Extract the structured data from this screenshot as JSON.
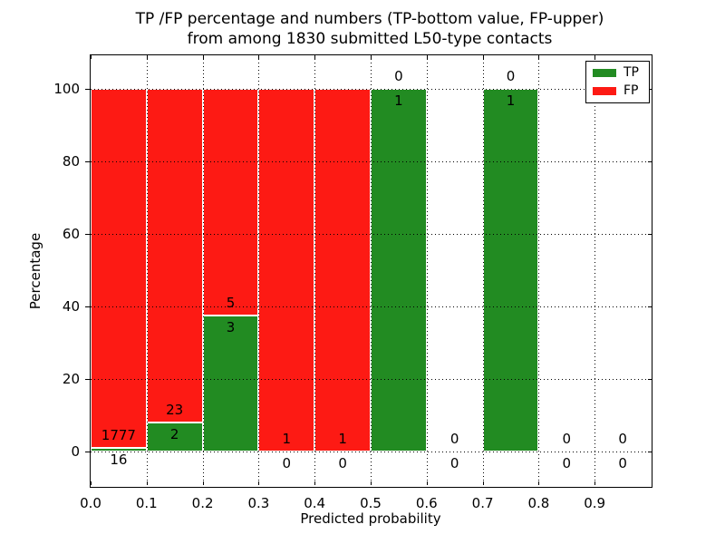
{
  "title": {
    "line1": "TP /FP percentage and numbers (TP-bottom value, FP-upper)",
    "line2": "from among 1830 submitted L50-type contacts"
  },
  "axes": {
    "xlabel": "Predicted probability",
    "ylabel": "Percentage",
    "x_ticks": [
      "0.0",
      "0.1",
      "0.2",
      "0.3",
      "0.4",
      "0.5",
      "0.6",
      "0.7",
      "0.8",
      "0.9"
    ],
    "y_ticks": [
      "0",
      "20",
      "40",
      "60",
      "80",
      "100"
    ],
    "xlim": [
      0.0,
      1.0
    ],
    "ylim": [
      -10,
      110
    ]
  },
  "legend": {
    "position": "upper right",
    "entries": [
      {
        "label": "TP",
        "color": "#228b22"
      },
      {
        "label": "FP",
        "color": "#fd1a14"
      }
    ]
  },
  "colors": {
    "tp": "#228b22",
    "fp": "#fd1a14",
    "grid": "#000000",
    "frame": "#000000",
    "text": "#000000",
    "background": "#ffffff"
  },
  "chart_data": {
    "type": "bar",
    "stacked": true,
    "normalized": "each bin stacked to 100%",
    "title": "TP /FP percentage and numbers (TP-bottom value, FP-upper) from among 1830 submitted L50-type contacts",
    "xlabel": "Predicted probability",
    "ylabel": "Percentage",
    "xlim": [
      0.0,
      1.0
    ],
    "ylim": [
      -10,
      110
    ],
    "grid": "dotted, both axes, drawn above bars",
    "legend_position": "upper right",
    "total_contacts": 1830,
    "bin_edges": [
      0.0,
      0.1,
      0.2,
      0.3,
      0.4,
      0.5,
      0.6,
      0.7,
      0.8,
      0.9,
      1.0
    ],
    "categories": [
      "0.0-0.1",
      "0.1-0.2",
      "0.2-0.3",
      "0.3-0.4",
      "0.4-0.5",
      "0.5-0.6",
      "0.6-0.7",
      "0.7-0.8",
      "0.8-0.9",
      "0.9-1.0"
    ],
    "series": [
      {
        "name": "TP",
        "color": "#228b22",
        "counts": [
          16,
          2,
          3,
          0,
          0,
          1,
          0,
          1,
          0,
          0
        ],
        "percent": [
          0.89,
          8.0,
          37.5,
          0,
          0,
          100,
          0,
          100,
          0,
          0
        ]
      },
      {
        "name": "FP",
        "color": "#fd1a14",
        "counts": [
          1777,
          23,
          5,
          1,
          1,
          0,
          0,
          0,
          0,
          0
        ],
        "percent": [
          99.11,
          92.0,
          62.5,
          100,
          100,
          0,
          0,
          0,
          0,
          0
        ]
      }
    ],
    "count_label_rule": "FP count printed above TP bar top, TP count printed below TP bar top"
  }
}
